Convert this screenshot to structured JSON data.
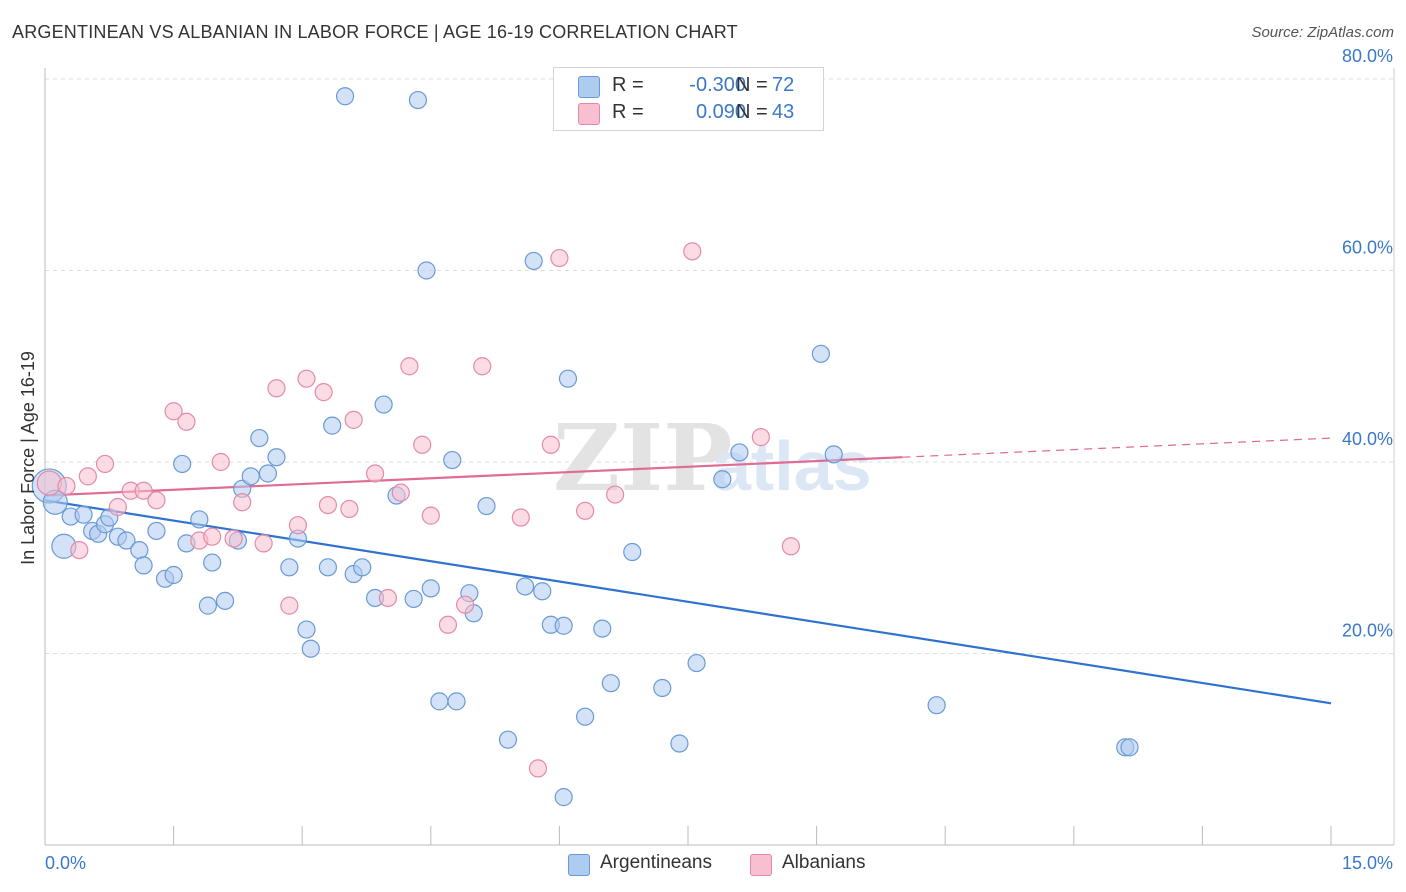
{
  "header": {
    "title": "ARGENTINEAN VS ALBANIAN IN LABOR FORCE | AGE 16-19 CORRELATION CHART",
    "source": "Source: ZipAtlas.com"
  },
  "legend": {
    "series": [
      {
        "r_label": "R = ",
        "r_value": "-0.300",
        "n_label": "N = ",
        "n_value": "72"
      },
      {
        "r_label": "R = ",
        "r_value": "0.090",
        "n_label": "N = ",
        "n_value": "43"
      }
    ]
  },
  "bottom_legend": [
    "Argentineans",
    "Albanians"
  ],
  "colors": {
    "blue_fill": "#aecbf0",
    "blue_stroke": "#6a9ad4",
    "blue_line": "#2f72cf",
    "pink_fill": "#f7bfd0",
    "pink_stroke": "#e48aa8",
    "pink_line": "#e06c96",
    "axis_text": "#3a78c8",
    "grid": "#dddddd"
  },
  "chart_data": {
    "type": "scatter",
    "title": "ARGENTINEAN VS ALBANIAN IN LABOR FORCE | AGE 16-19 CORRELATION CHART",
    "xlabel": "",
    "ylabel": "In Labor Force | Age 16-19",
    "xlim": [
      0,
      15
    ],
    "ylim": [
      0,
      80
    ],
    "x_tick_labels": [
      "0.0%",
      "15.0%"
    ],
    "y_ticks": [
      20,
      40,
      60,
      80
    ],
    "y_tick_labels": [
      "20.0%",
      "40.0%",
      "60.0%",
      "80.0%"
    ],
    "grid": true,
    "watermark": {
      "zip": "ZIP",
      "atlas": "atlas"
    },
    "series": [
      {
        "name": "Argentineans",
        "r": -0.3,
        "n": 72,
        "trend": {
          "x": [
            0,
            15
          ],
          "y": [
            36.0,
            14.8
          ],
          "solid_until": 15
        },
        "points": [
          {
            "x": 0.05,
            "y": 37.5,
            "big": 2
          },
          {
            "x": 0.12,
            "y": 35.8,
            "big": 1
          },
          {
            "x": 0.22,
            "y": 31.2,
            "big": 1
          },
          {
            "x": 0.3,
            "y": 34.3
          },
          {
            "x": 0.45,
            "y": 34.5
          },
          {
            "x": 0.55,
            "y": 32.8
          },
          {
            "x": 0.62,
            "y": 32.5
          },
          {
            "x": 0.7,
            "y": 33.5
          },
          {
            "x": 0.75,
            "y": 34.2
          },
          {
            "x": 0.85,
            "y": 32.2
          },
          {
            "x": 0.95,
            "y": 31.8
          },
          {
            "x": 1.1,
            "y": 30.8
          },
          {
            "x": 1.15,
            "y": 29.2
          },
          {
            "x": 1.3,
            "y": 32.8
          },
          {
            "x": 1.4,
            "y": 27.8
          },
          {
            "x": 1.5,
            "y": 28.2
          },
          {
            "x": 1.6,
            "y": 39.8
          },
          {
            "x": 1.65,
            "y": 31.5
          },
          {
            "x": 1.8,
            "y": 34.0
          },
          {
            "x": 1.9,
            "y": 25.0
          },
          {
            "x": 1.95,
            "y": 29.5
          },
          {
            "x": 2.1,
            "y": 25.5
          },
          {
            "x": 2.25,
            "y": 31.8
          },
          {
            "x": 2.3,
            "y": 37.2
          },
          {
            "x": 2.4,
            "y": 38.5
          },
          {
            "x": 2.5,
            "y": 42.5
          },
          {
            "x": 2.6,
            "y": 38.8
          },
          {
            "x": 2.7,
            "y": 40.5
          },
          {
            "x": 2.85,
            "y": 29.0
          },
          {
            "x": 2.95,
            "y": 32.0
          },
          {
            "x": 3.05,
            "y": 22.5
          },
          {
            "x": 3.1,
            "y": 20.5
          },
          {
            "x": 3.3,
            "y": 29.0
          },
          {
            "x": 3.35,
            "y": 43.8
          },
          {
            "x": 3.5,
            "y": 78.2
          },
          {
            "x": 3.6,
            "y": 28.3
          },
          {
            "x": 3.7,
            "y": 29.0
          },
          {
            "x": 3.85,
            "y": 25.8
          },
          {
            "x": 3.95,
            "y": 46.0
          },
          {
            "x": 4.1,
            "y": 36.5
          },
          {
            "x": 4.3,
            "y": 25.7
          },
          {
            "x": 4.35,
            "y": 77.8
          },
          {
            "x": 4.45,
            "y": 60.0
          },
          {
            "x": 4.5,
            "y": 26.8
          },
          {
            "x": 4.6,
            "y": 15.0
          },
          {
            "x": 4.75,
            "y": 40.2
          },
          {
            "x": 4.8,
            "y": 15.0
          },
          {
            "x": 4.95,
            "y": 26.3
          },
          {
            "x": 5.0,
            "y": 24.2
          },
          {
            "x": 5.15,
            "y": 35.4
          },
          {
            "x": 5.4,
            "y": 11.0
          },
          {
            "x": 5.6,
            "y": 27.0
          },
          {
            "x": 5.7,
            "y": 61.0
          },
          {
            "x": 5.8,
            "y": 26.5
          },
          {
            "x": 5.9,
            "y": 23.0
          },
          {
            "x": 6.1,
            "y": 48.7
          },
          {
            "x": 6.05,
            "y": 5.0
          },
          {
            "x": 6.05,
            "y": 22.9
          },
          {
            "x": 6.3,
            "y": 13.4
          },
          {
            "x": 6.5,
            "y": 22.6
          },
          {
            "x": 6.6,
            "y": 16.9
          },
          {
            "x": 6.85,
            "y": 30.6
          },
          {
            "x": 7.2,
            "y": 16.4
          },
          {
            "x": 7.4,
            "y": 10.6
          },
          {
            "x": 7.6,
            "y": 19.0
          },
          {
            "x": 7.9,
            "y": 38.2
          },
          {
            "x": 8.1,
            "y": 41.0
          },
          {
            "x": 9.05,
            "y": 51.3
          },
          {
            "x": 9.2,
            "y": 40.8
          },
          {
            "x": 10.4,
            "y": 14.6
          },
          {
            "x": 12.6,
            "y": 10.2
          },
          {
            "x": 12.65,
            "y": 10.2
          }
        ]
      },
      {
        "name": "Albanians",
        "r": 0.09,
        "n": 43,
        "trend": {
          "x": [
            0,
            15
          ],
          "y": [
            36.5,
            42.5
          ],
          "solid_until": 10.0
        },
        "points": [
          {
            "x": 0.05,
            "y": 37.8,
            "big": 1
          },
          {
            "x": 0.25,
            "y": 37.5
          },
          {
            "x": 0.4,
            "y": 30.8
          },
          {
            "x": 0.5,
            "y": 38.5
          },
          {
            "x": 0.7,
            "y": 39.8
          },
          {
            "x": 0.85,
            "y": 35.3
          },
          {
            "x": 1.0,
            "y": 37.0
          },
          {
            "x": 1.15,
            "y": 37.0
          },
          {
            "x": 1.3,
            "y": 36.0
          },
          {
            "x": 1.5,
            "y": 45.3
          },
          {
            "x": 1.65,
            "y": 44.2
          },
          {
            "x": 1.8,
            "y": 31.8
          },
          {
            "x": 1.95,
            "y": 32.2
          },
          {
            "x": 2.05,
            "y": 40.0
          },
          {
            "x": 2.2,
            "y": 32.0
          },
          {
            "x": 2.3,
            "y": 35.8
          },
          {
            "x": 2.55,
            "y": 31.5
          },
          {
            "x": 2.7,
            "y": 47.7
          },
          {
            "x": 2.85,
            "y": 25.0
          },
          {
            "x": 2.95,
            "y": 33.4
          },
          {
            "x": 3.05,
            "y": 48.7
          },
          {
            "x": 3.3,
            "y": 35.5
          },
          {
            "x": 3.25,
            "y": 47.3
          },
          {
            "x": 3.55,
            "y": 35.1
          },
          {
            "x": 3.6,
            "y": 44.4
          },
          {
            "x": 3.85,
            "y": 38.8
          },
          {
            "x": 4.0,
            "y": 25.8
          },
          {
            "x": 4.15,
            "y": 36.8
          },
          {
            "x": 4.25,
            "y": 50.0
          },
          {
            "x": 4.4,
            "y": 41.8
          },
          {
            "x": 4.5,
            "y": 34.4
          },
          {
            "x": 4.7,
            "y": 23.0
          },
          {
            "x": 4.9,
            "y": 25.1
          },
          {
            "x": 5.1,
            "y": 50.0
          },
          {
            "x": 5.55,
            "y": 34.2
          },
          {
            "x": 5.75,
            "y": 8.0
          },
          {
            "x": 5.9,
            "y": 41.8
          },
          {
            "x": 6.0,
            "y": 61.3
          },
          {
            "x": 6.3,
            "y": 34.9
          },
          {
            "x": 6.65,
            "y": 36.6
          },
          {
            "x": 7.55,
            "y": 62.0
          },
          {
            "x": 8.35,
            "y": 42.6
          },
          {
            "x": 8.7,
            "y": 31.2
          }
        ]
      }
    ]
  }
}
